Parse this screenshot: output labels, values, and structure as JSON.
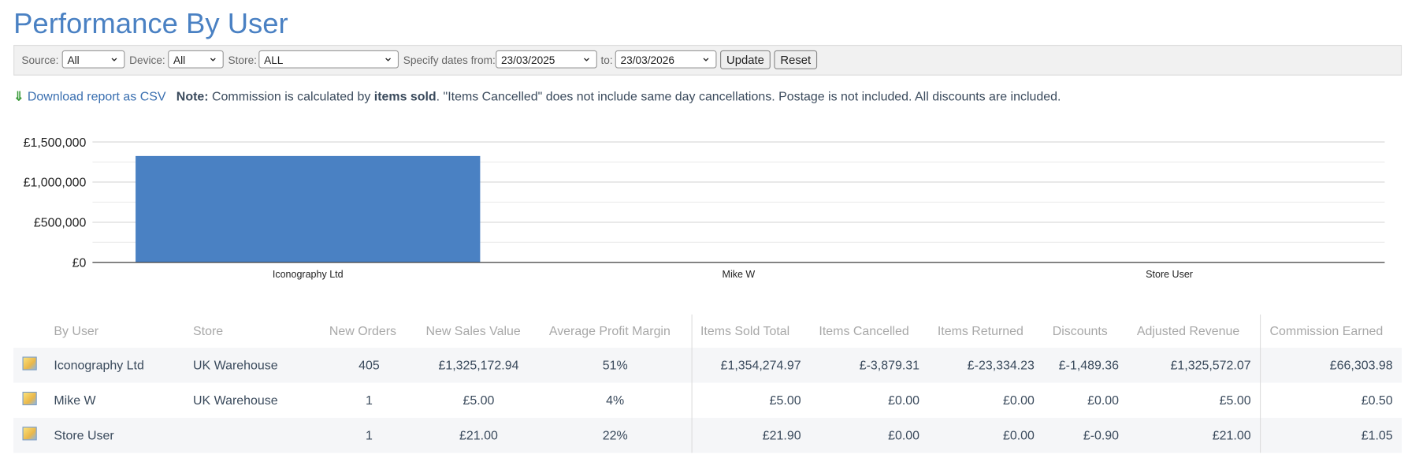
{
  "header": {
    "title": "Performance By User"
  },
  "filters": {
    "source_label": "Source:",
    "source_value": "All",
    "device_label": "Device:",
    "device_value": "All",
    "store_label": "Store:",
    "store_value": "ALL",
    "dates_label": "Specify dates from:",
    "date_from": "23/03/2025",
    "to_label": "to:",
    "date_to": "23/03/2026",
    "update": "Update",
    "reset": "Reset"
  },
  "note": {
    "download": "Download report as CSV",
    "prefix": "Note:",
    "text1": "Commission is calculated by",
    "bold": "items sold",
    "text2": ". \"Items Cancelled\" does not include same day cancellations. Postage is not included. All discounts are included."
  },
  "chart_data": {
    "type": "bar",
    "categories": [
      "Iconography Ltd",
      "Mike W",
      "Store User"
    ],
    "values": [
      1325172.94,
      5,
      21
    ],
    "color": "#4a81c3",
    "ylim": [
      0,
      1500000
    ],
    "yticks": [
      {
        "value": 0,
        "label": "£0"
      },
      {
        "value": 500000,
        "label": "£500,000"
      },
      {
        "value": 1000000,
        "label": "£1,000,000"
      },
      {
        "value": 1500000,
        "label": "£1,500,000"
      }
    ],
    "minor_yticks": [
      250000,
      750000,
      1250000
    ],
    "grid": true
  },
  "table": {
    "headers": [
      "By User",
      "Store",
      "New Orders",
      "New Sales Value",
      "Average Profit Margin",
      "Items Sold Total",
      "Items Cancelled",
      "Items Returned",
      "Discounts",
      "Adjusted Revenue",
      "Commission Earned"
    ],
    "rows": [
      [
        "Iconography Ltd",
        "UK Warehouse",
        "405",
        "£1,325,172.94",
        "51%",
        "£1,354,274.97",
        "£-3,879.31",
        "£-23,334.23",
        "£-1,489.36",
        "£1,325,572.07",
        "£66,303.98"
      ],
      [
        "Mike W",
        "UK Warehouse",
        "1",
        "£5.00",
        "4%",
        "£5.00",
        "£0.00",
        "£0.00",
        "£0.00",
        "£5.00",
        "£0.50"
      ],
      [
        "Store User",
        null,
        "1",
        "£21.00",
        "22%",
        "£21.90",
        "£0.00",
        "£0.00",
        "£-0.90",
        "£21.00",
        "£1.05"
      ]
    ]
  }
}
